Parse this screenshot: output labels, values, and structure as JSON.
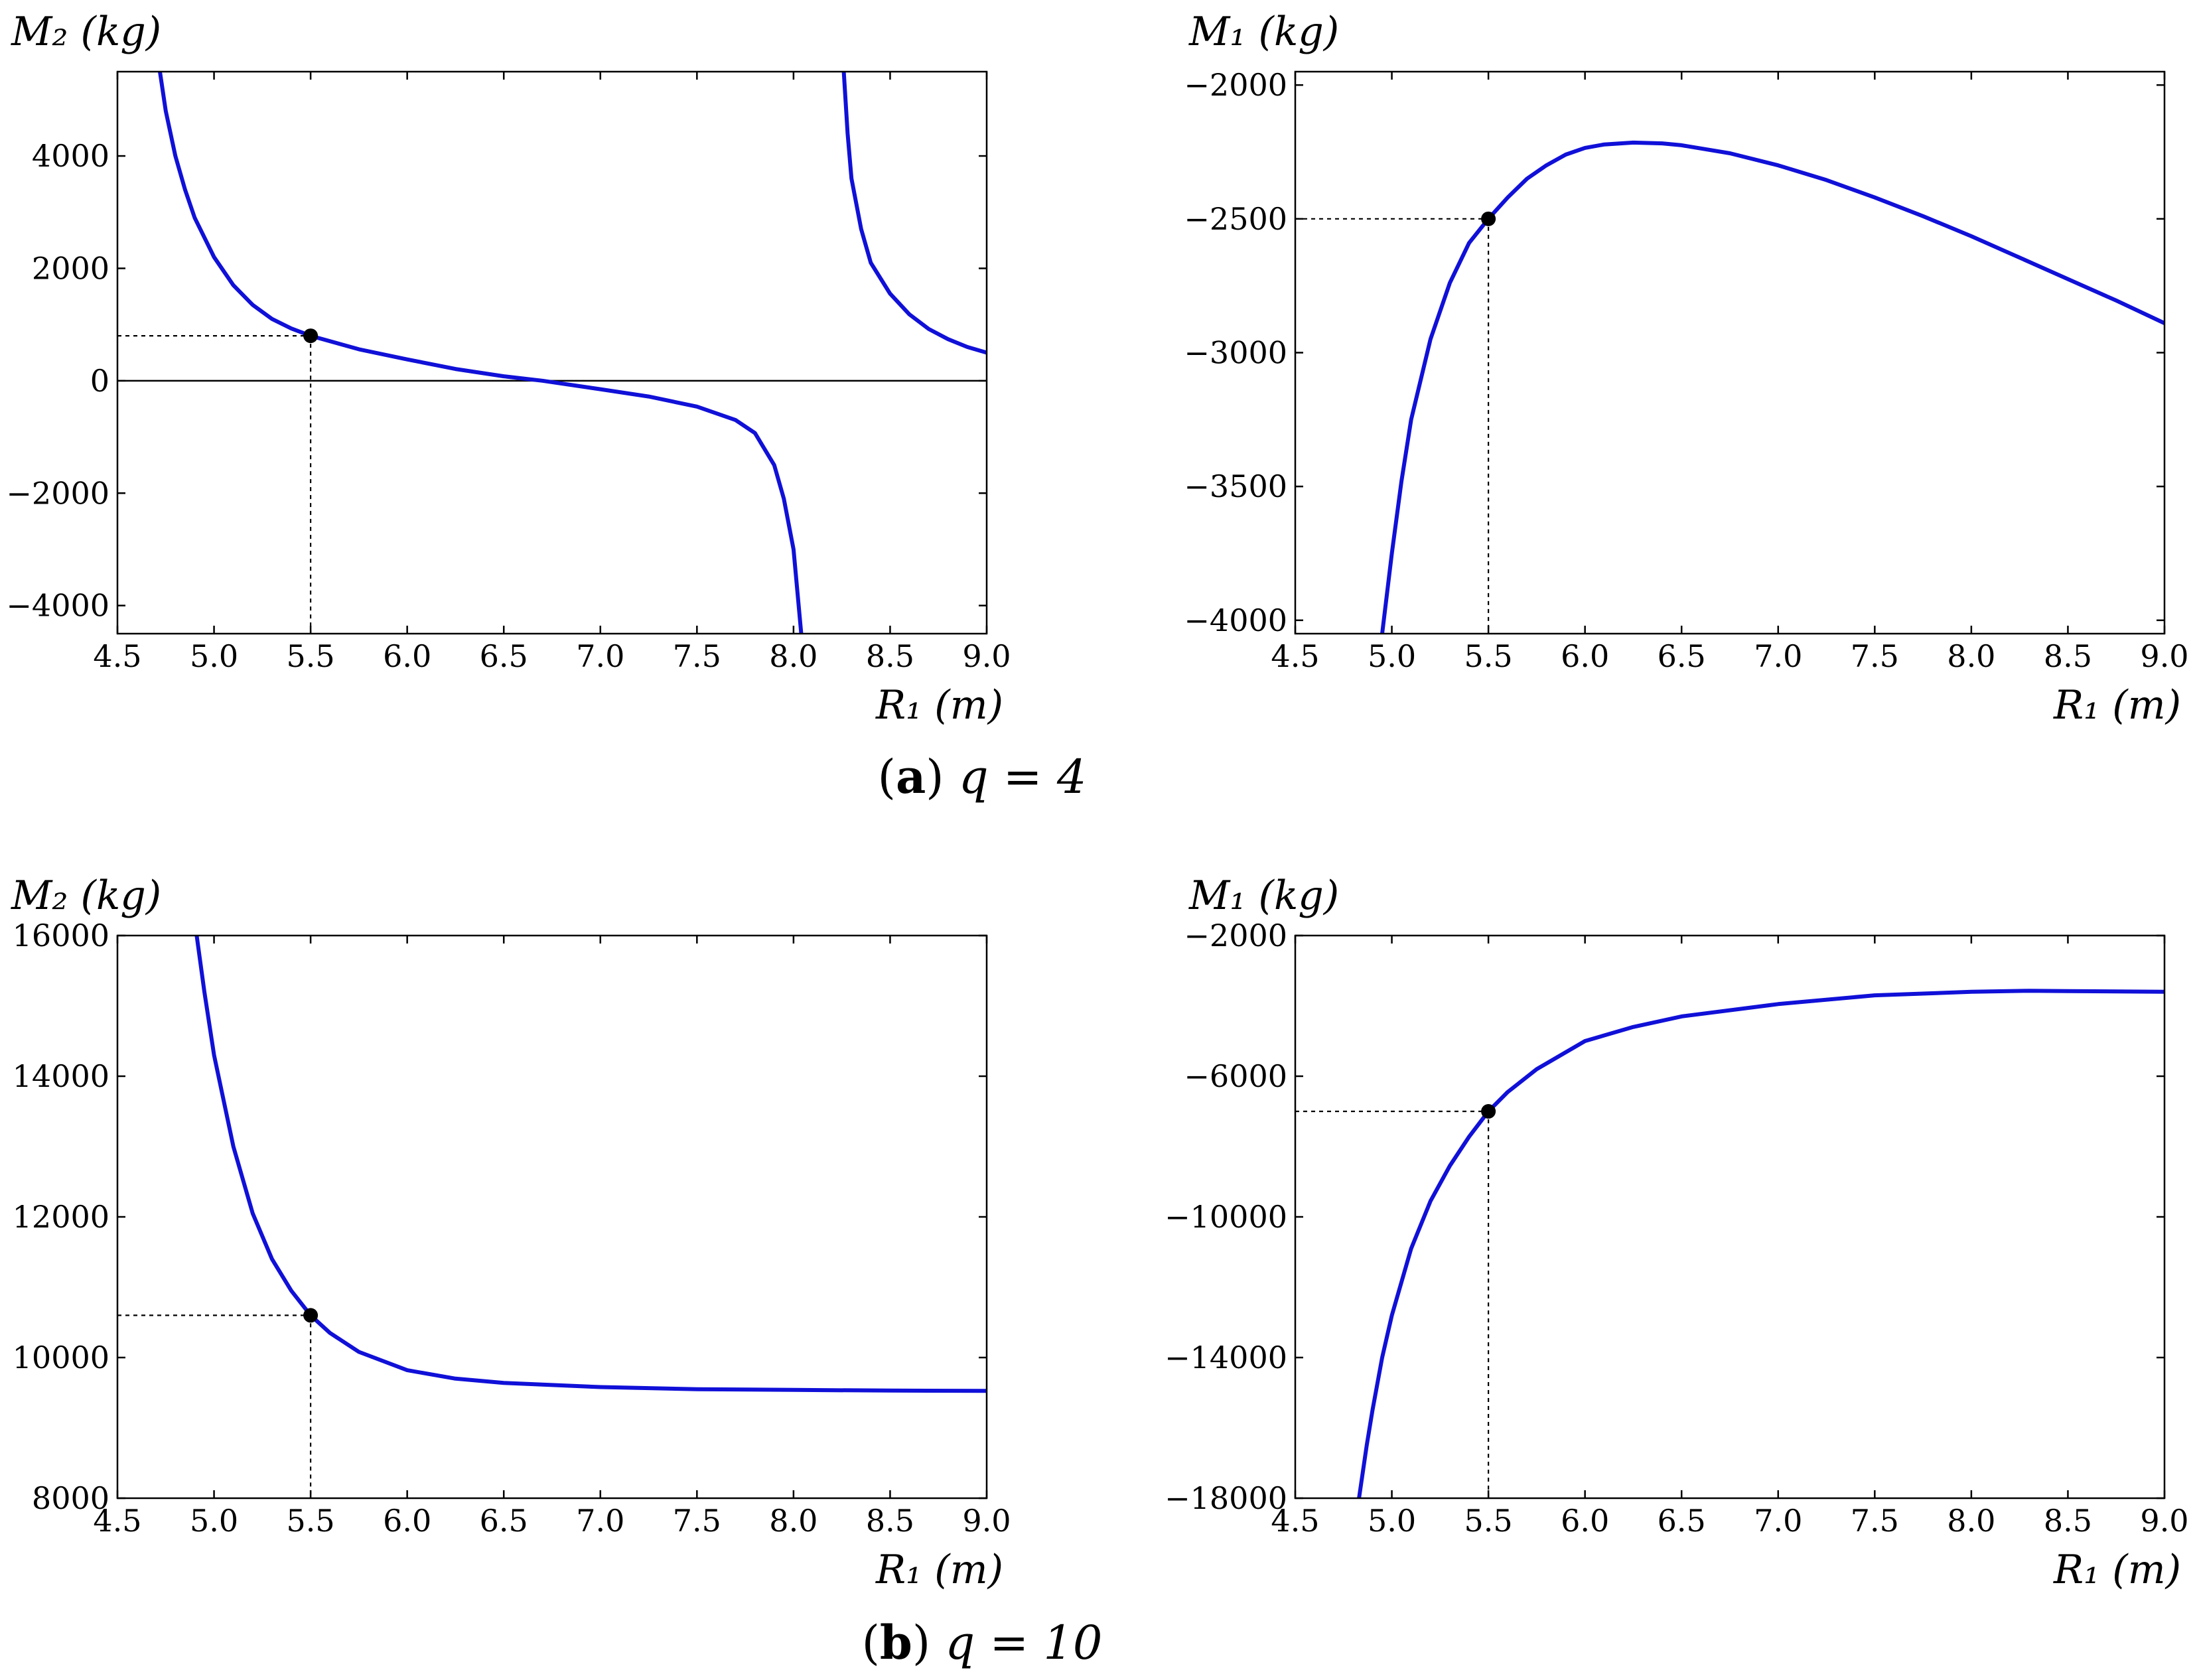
{
  "captions": {
    "a": {
      "label": "a",
      "text": "q = 4"
    },
    "b": {
      "label": "b",
      "text": "q = 10"
    }
  },
  "chart_data": [
    {
      "id": "a-left",
      "type": "line",
      "ylabel": "M₂ (kg)",
      "xlabel": "R₁ (m)",
      "xlim": [
        4.5,
        9.0
      ],
      "ylim": [
        -4500,
        5500
      ],
      "xticks": [
        "4.5",
        "5.0",
        "5.5",
        "6.0",
        "6.5",
        "7.0",
        "7.5",
        "8.0",
        "8.5",
        "9.0"
      ],
      "xtick_values": [
        4.5,
        5.0,
        5.5,
        6.0,
        6.5,
        7.0,
        7.5,
        8.0,
        8.5,
        9.0
      ],
      "yticks": [
        "−4000",
        "−2000",
        "0",
        "2000",
        "4000"
      ],
      "ytick_values": [
        -4000,
        -2000,
        0,
        2000,
        4000
      ],
      "zero_line": true,
      "series": [
        {
          "x": [
            4.72,
            4.75,
            4.8,
            4.85,
            4.9,
            5.0,
            5.1,
            5.2,
            5.3,
            5.4,
            5.5,
            5.75,
            6.0,
            6.25,
            6.5,
            6.7,
            7.0,
            7.25,
            7.5,
            7.7,
            7.8,
            7.9,
            7.95,
            8.0,
            8.04
          ],
          "y": [
            5500,
            4800,
            4000,
            3400,
            2900,
            2200,
            1700,
            1350,
            1100,
            930,
            800,
            560,
            380,
            210,
            80,
            0,
            -150,
            -280,
            -460,
            -700,
            -930,
            -1500,
            -2100,
            -3000,
            -4500
          ]
        },
        {
          "x": [
            8.26,
            8.28,
            8.3,
            8.35,
            8.4,
            8.5,
            8.6,
            8.7,
            8.8,
            8.9,
            9.0
          ],
          "y": [
            5500,
            4400,
            3600,
            2700,
            2100,
            1550,
            1180,
            920,
            740,
            600,
            500
          ]
        }
      ],
      "marker": {
        "x": 5.5,
        "y": 800
      }
    },
    {
      "id": "a-right",
      "type": "line",
      "ylabel": "M₁ (kg)",
      "xlabel": "R₁ (m)",
      "xlim": [
        4.5,
        9.0
      ],
      "ylim": [
        -4050,
        -1950
      ],
      "xticks": [
        "4.5",
        "5.0",
        "5.5",
        "6.0",
        "6.5",
        "7.0",
        "7.5",
        "8.0",
        "8.5",
        "9.0"
      ],
      "xtick_values": [
        4.5,
        5.0,
        5.5,
        6.0,
        6.5,
        7.0,
        7.5,
        8.0,
        8.5,
        9.0
      ],
      "yticks": [
        "−4000",
        "−3500",
        "−3000",
        "−2500",
        "−2000"
      ],
      "ytick_values": [
        -4000,
        -3500,
        -3000,
        -2500,
        -2000
      ],
      "zero_line": false,
      "series": [
        {
          "x": [
            4.95,
            5.0,
            5.05,
            5.1,
            5.2,
            5.3,
            5.4,
            5.5,
            5.6,
            5.7,
            5.8,
            5.9,
            6.0,
            6.1,
            6.25,
            6.4,
            6.5,
            6.75,
            7.0,
            7.25,
            7.5,
            7.75,
            8.0,
            8.25,
            8.5,
            8.75,
            9.0
          ],
          "y": [
            -4050,
            -3750,
            -3480,
            -3250,
            -2950,
            -2740,
            -2590,
            -2500,
            -2420,
            -2350,
            -2300,
            -2260,
            -2235,
            -2222,
            -2215,
            -2218,
            -2225,
            -2255,
            -2300,
            -2355,
            -2420,
            -2490,
            -2565,
            -2645,
            -2725,
            -2805,
            -2890
          ]
        }
      ],
      "marker": {
        "x": 5.5,
        "y": -2500
      }
    },
    {
      "id": "b-left",
      "type": "line",
      "ylabel": "M₂ (kg)",
      "xlabel": "R₁ (m)",
      "xlim": [
        4.5,
        9.0
      ],
      "ylim": [
        8000,
        16000
      ],
      "xticks": [
        "4.5",
        "5.0",
        "5.5",
        "6.0",
        "6.5",
        "7.0",
        "7.5",
        "8.0",
        "8.5",
        "9.0"
      ],
      "xtick_values": [
        4.5,
        5.0,
        5.5,
        6.0,
        6.5,
        7.0,
        7.5,
        8.0,
        8.5,
        9.0
      ],
      "yticks": [
        "8000",
        "10000",
        "12000",
        "14000",
        "16000"
      ],
      "ytick_values": [
        8000,
        10000,
        12000,
        14000,
        16000
      ],
      "zero_line": false,
      "series": [
        {
          "x": [
            4.91,
            4.95,
            5.0,
            5.1,
            5.2,
            5.3,
            5.4,
            5.5,
            5.6,
            5.75,
            6.0,
            6.25,
            6.5,
            7.0,
            7.5,
            8.0,
            8.5,
            9.0
          ],
          "y": [
            16000,
            15200,
            14300,
            13000,
            12050,
            11400,
            10950,
            10600,
            10350,
            10080,
            9820,
            9700,
            9640,
            9580,
            9550,
            9540,
            9530,
            9525
          ]
        }
      ],
      "marker": {
        "x": 5.5,
        "y": 10600
      }
    },
    {
      "id": "b-right",
      "type": "line",
      "ylabel": "M₁ (kg)",
      "xlabel": "R₁ (m)",
      "xlim": [
        4.5,
        9.0
      ],
      "ylim": [
        -18000,
        -2000
      ],
      "xticks": [
        "4.5",
        "5.0",
        "5.5",
        "6.0",
        "6.5",
        "7.0",
        "7.5",
        "8.0",
        "8.5",
        "9.0"
      ],
      "xtick_values": [
        4.5,
        5.0,
        5.5,
        6.0,
        6.5,
        7.0,
        7.5,
        8.0,
        8.5,
        9.0
      ],
      "yticks": [
        "−18000",
        "−14000",
        "−10000",
        "−6000",
        "−2000"
      ],
      "ytick_values": [
        -18000,
        -14000,
        -10000,
        -6000,
        -2000
      ],
      "zero_line": false,
      "series": [
        {
          "x": [
            4.83,
            4.87,
            4.9,
            4.95,
            5.0,
            5.1,
            5.2,
            5.3,
            5.4,
            5.5,
            5.6,
            5.75,
            6.0,
            6.25,
            6.5,
            7.0,
            7.5,
            8.0,
            8.3,
            8.5,
            9.0
          ],
          "y": [
            -18000,
            -16500,
            -15500,
            -14000,
            -12800,
            -10900,
            -9550,
            -8550,
            -7720,
            -7000,
            -6450,
            -5800,
            -5000,
            -4600,
            -4300,
            -3950,
            -3700,
            -3600,
            -3570,
            -3580,
            -3600
          ]
        }
      ],
      "marker": {
        "x": 5.5,
        "y": -7000
      }
    }
  ]
}
